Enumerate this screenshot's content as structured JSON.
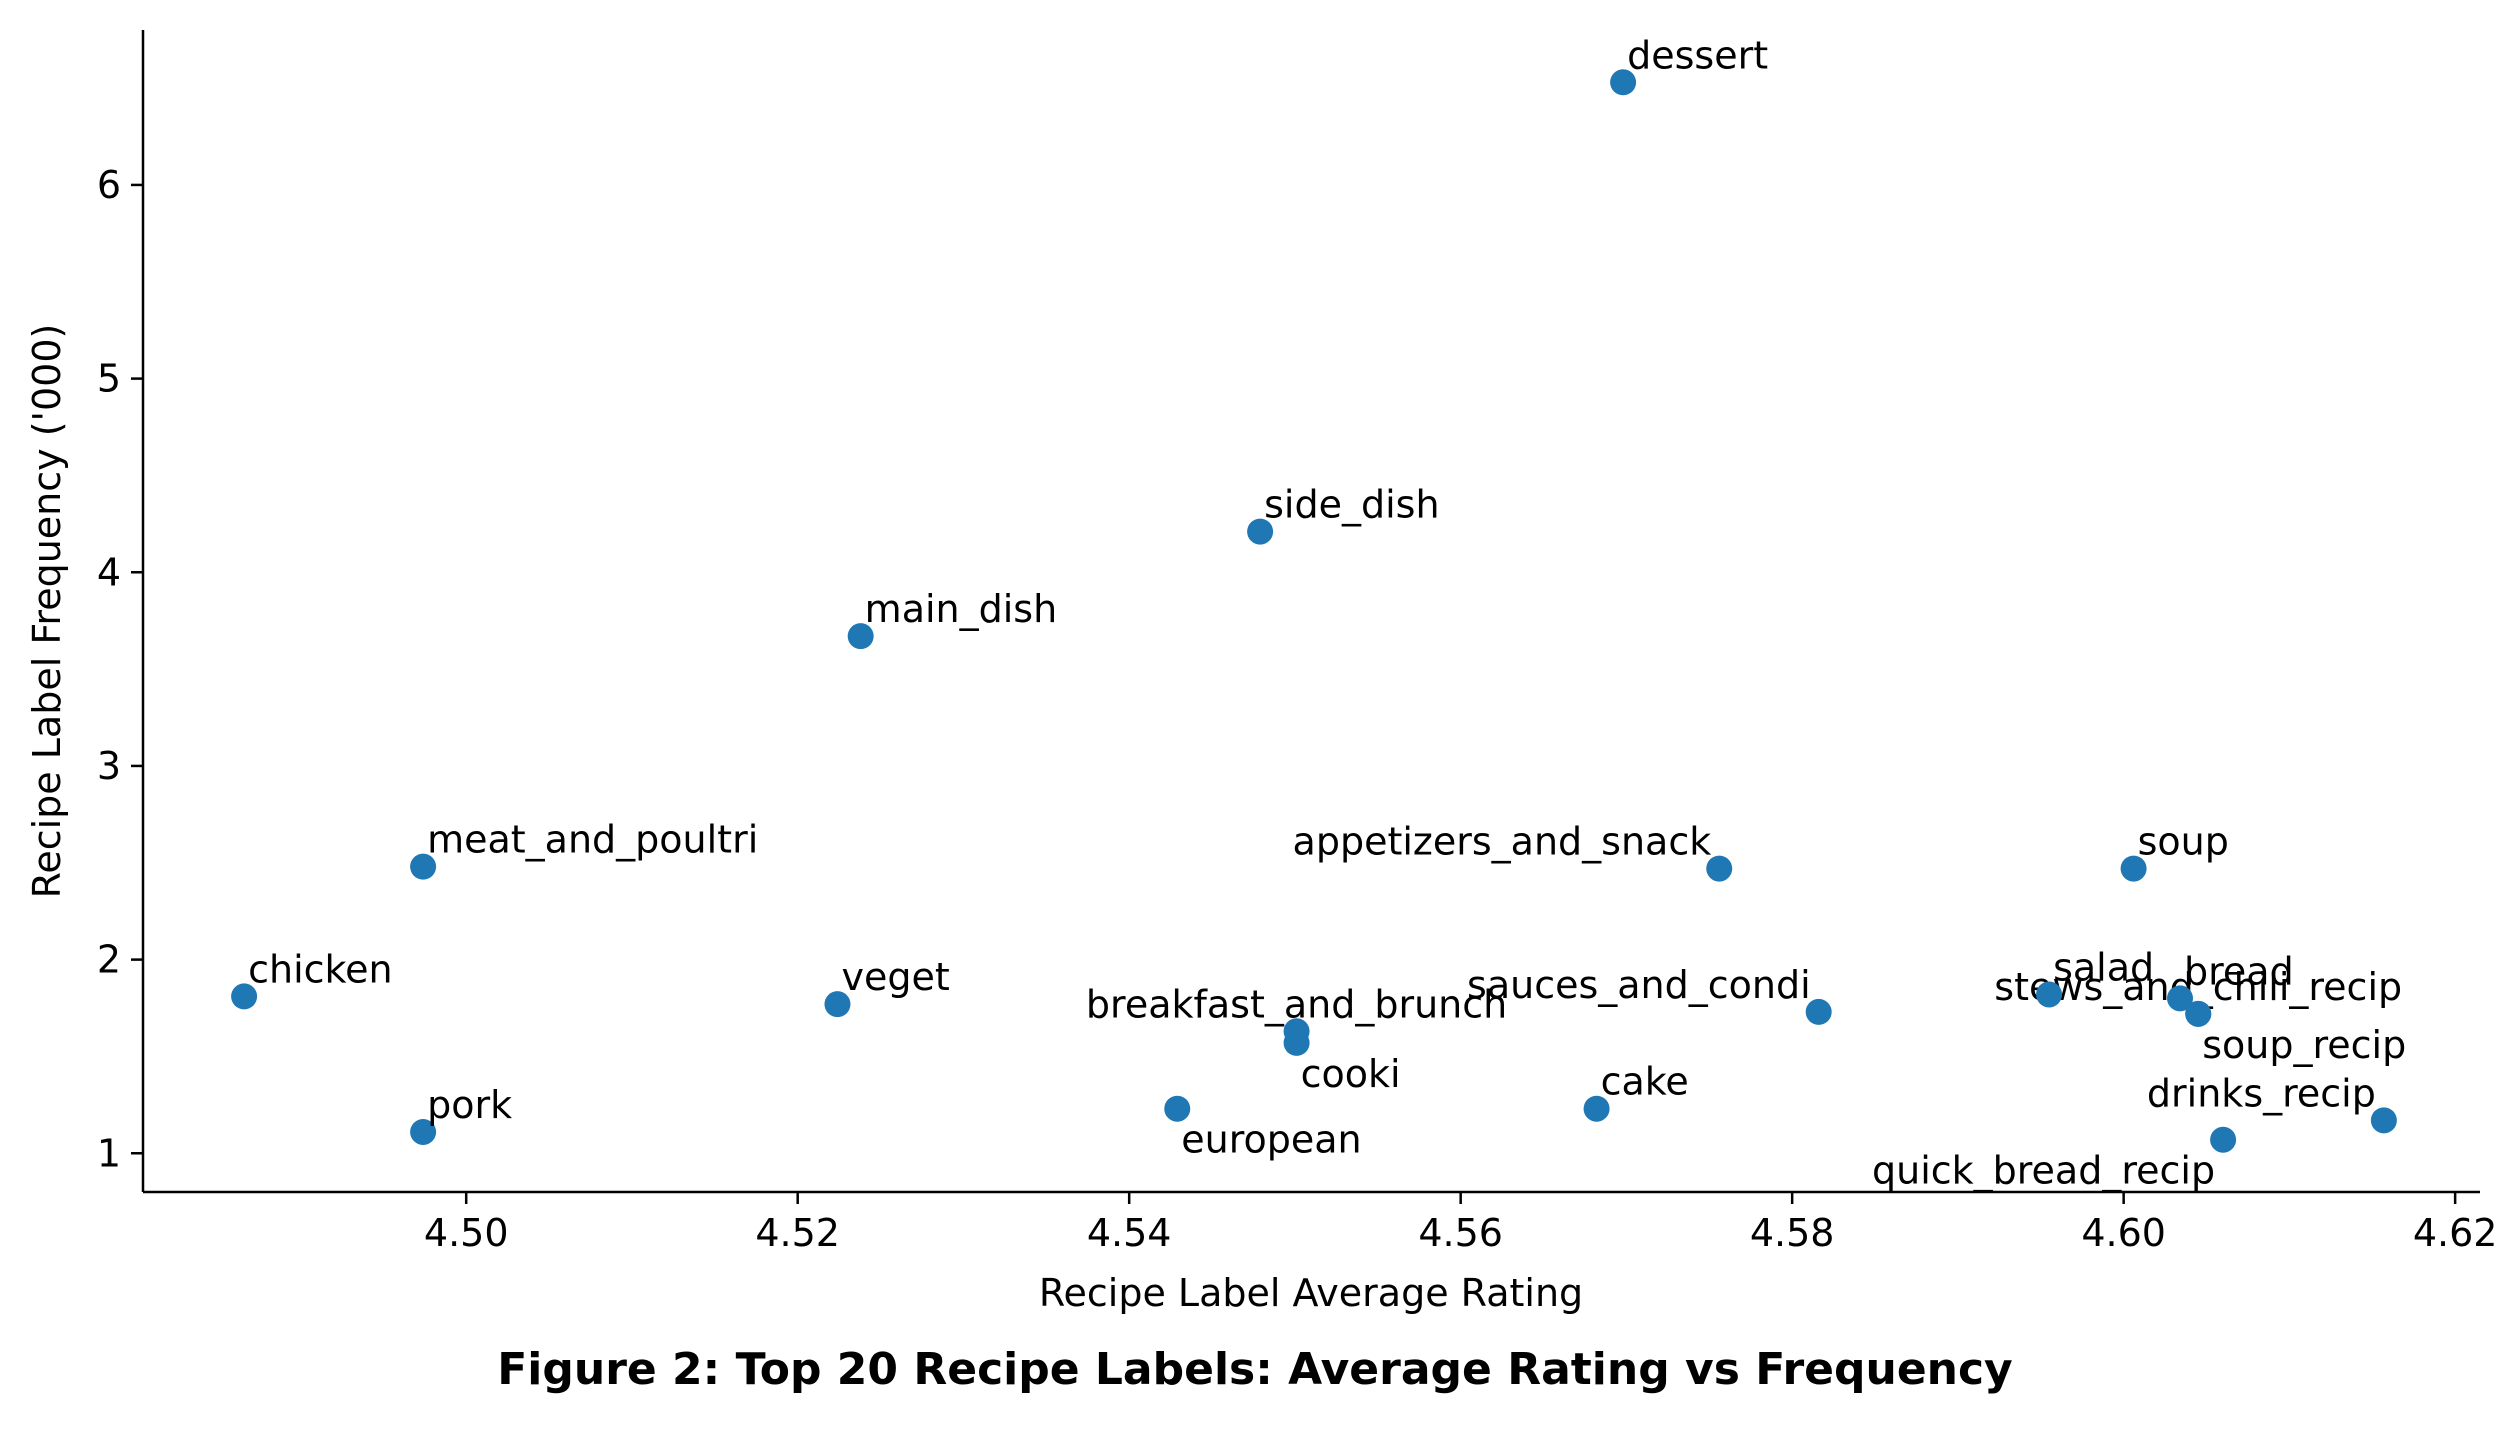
{
  "figure": {
    "caption": "Figure 2: Top 20 Recipe Labels: Average Rating vs Frequency"
  },
  "chart_data": {
    "type": "scatter",
    "title": "",
    "xlabel": "Recipe Label Average Rating",
    "ylabel": "Recipe Label Frequency ('000)",
    "xlim": [
      4.4805,
      4.6215
    ],
    "ylim": [
      0.8,
      6.8
    ],
    "xticks": [
      4.5,
      4.52,
      4.54,
      4.56,
      4.58,
      4.6,
      4.62
    ],
    "xtick_labels": [
      "4.50",
      "4.52",
      "4.54",
      "4.56",
      "4.58",
      "4.60",
      "4.62"
    ],
    "yticks": [
      1,
      2,
      3,
      4,
      5,
      6
    ],
    "ytick_labels": [
      "1",
      "2",
      "3",
      "4",
      "5",
      "6"
    ],
    "grid": false,
    "marker_color": "#1f77b4",
    "points": [
      {
        "label": "dessert",
        "x": 4.5698,
        "y": 6.53,
        "label_pos": "upper-right"
      },
      {
        "label": "side_dish",
        "x": 4.5479,
        "y": 4.21,
        "label_pos": "upper-right"
      },
      {
        "label": "main_dish",
        "x": 4.5238,
        "y": 3.67,
        "label_pos": "upper-right"
      },
      {
        "label": "meat_and_poultri",
        "x": 4.4974,
        "y": 2.48,
        "label_pos": "upper-right"
      },
      {
        "label": "appetizers_and_snack",
        "x": 4.5756,
        "y": 2.47,
        "label_pos": "upper-left"
      },
      {
        "label": "soup",
        "x": 4.6006,
        "y": 2.47,
        "label_pos": "upper-right"
      },
      {
        "label": "stews_and_chili_recip",
        "x": 4.6045,
        "y": 1.72,
        "label_pos": "upper-center"
      },
      {
        "label": "chicken",
        "x": 4.4866,
        "y": 1.81,
        "label_pos": "upper-right"
      },
      {
        "label": "salad",
        "x": 4.5955,
        "y": 1.82,
        "label_pos": "upper-right"
      },
      {
        "label": "bread",
        "x": 4.6034,
        "y": 1.8,
        "label_pos": "upper-right"
      },
      {
        "label": "veget",
        "x": 4.5224,
        "y": 1.77,
        "label_pos": "upper-right"
      },
      {
        "label": "sauces_and_condi",
        "x": 4.5816,
        "y": 1.73,
        "label_pos": "upper-left"
      },
      {
        "label": "soup_recip",
        "x": 4.6045,
        "y": 1.72,
        "label_pos": "lower-right"
      },
      {
        "label": "breakfast_and_brunch",
        "x": 4.5501,
        "y": 1.63,
        "label_pos": "upper-center"
      },
      {
        "label": "cooki",
        "x": 4.5501,
        "y": 1.57,
        "label_pos": "lower-right"
      },
      {
        "label": "european",
        "x": 4.5429,
        "y": 1.23,
        "label_pos": "lower-right"
      },
      {
        "label": "cake",
        "x": 4.5682,
        "y": 1.23,
        "label_pos": "upper-right"
      },
      {
        "label": "drinks_recip",
        "x": 4.6157,
        "y": 1.17,
        "label_pos": "upper-left"
      },
      {
        "label": "pork",
        "x": 4.4974,
        "y": 1.11,
        "label_pos": "upper-right"
      },
      {
        "label": "quick_bread_recip",
        "x": 4.606,
        "y": 1.07,
        "label_pos": "lower-left"
      }
    ]
  }
}
